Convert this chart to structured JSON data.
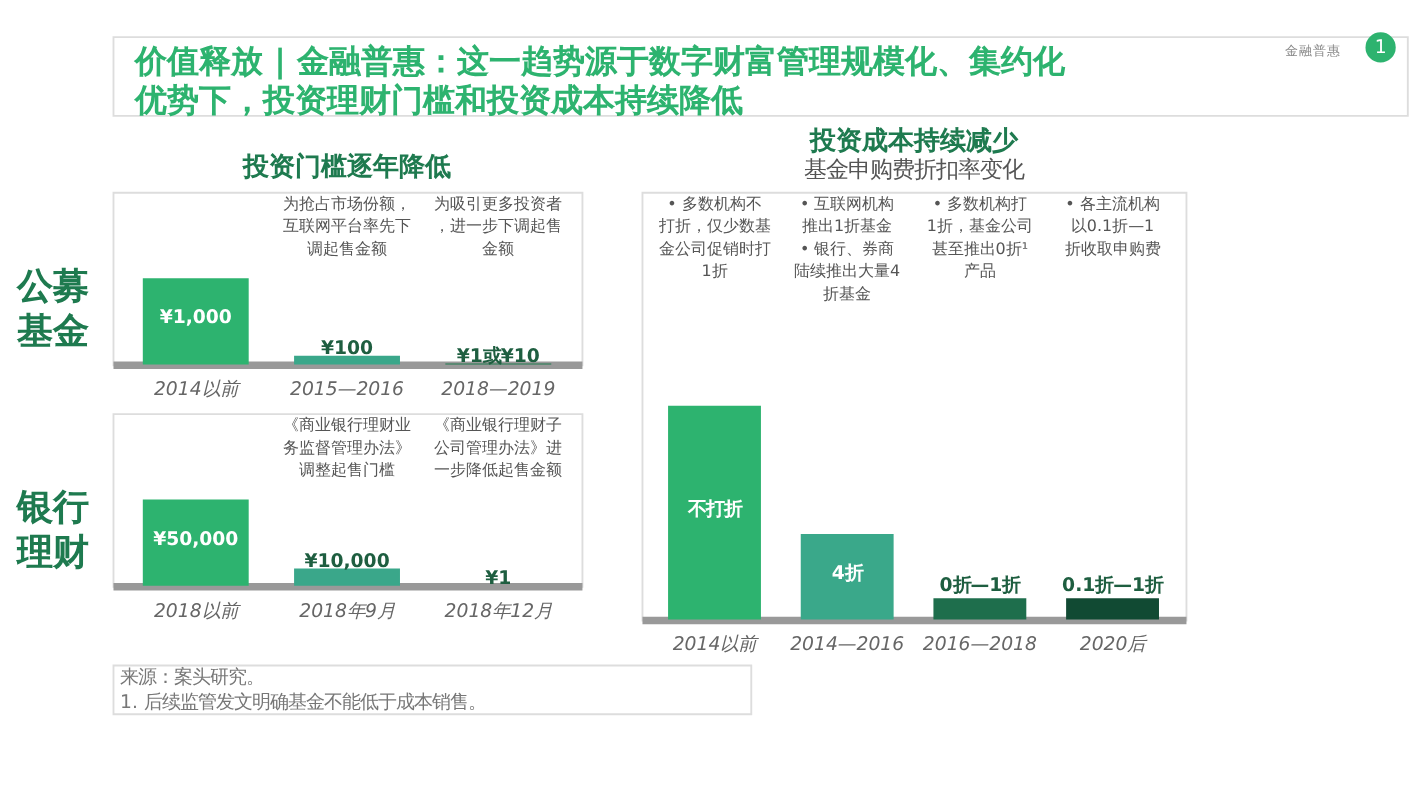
{
  "chart_data": [
    {
      "type": "other",
      "title": "价值释放 | 金融普惠：这一趋势源于数字财富管理规模化、集约化优势下，投资理财门槛和投资成本持续降低",
      "annotations": [
        "金融普惠",
        "1"
      ]
    },
    {
      "type": "bar",
      "title": "投资门槛逐年降低",
      "ylabel": "公募基金",
      "tick_labels": "x",
      "categories": [
        "2014以前",
        "2015—2016",
        "2018—2019"
      ],
      "values": [
        1000,
        100,
        10
      ],
      "colors": [
        "#2db36f",
        "#3aa78a",
        "#1e7a4f"
      ],
      "value_labels": [
        "¥1,000",
        "¥100",
        "¥1或¥10"
      ],
      "annotations": [
        "为抢占市场份额，互联网平台率先下调起售金额",
        "为吸引更多投资者，进一步下调起售金额"
      ]
    },
    {
      "type": "bar",
      "ylabel": "银行理财",
      "tick_labels": "x",
      "categories": [
        "2018以前",
        "2018年9月",
        "2018年12月"
      ],
      "values": [
        50000,
        10000,
        1
      ],
      "colors": [
        "#2db36f",
        "#3aa78a",
        "#1e7a4f"
      ],
      "value_labels": [
        "¥50,000",
        "¥10,000",
        "¥1"
      ],
      "annotations": [
        "《商业银行理财业务监督管理办法》调整起售门槛",
        "《商业银行理财子公司管理办法》进一步降低起售金额"
      ]
    },
    {
      "type": "bar",
      "title": "投资成本持续减少",
      "subtitle": "基金申购费折扣率变化",
      "tick_labels": "x",
      "categories": [
        "2014以前",
        "2014—2016",
        "2016—2018",
        "2020后"
      ],
      "values": [
        10,
        4,
        1,
        1
      ],
      "colors": [
        "#2db36f",
        "#3aa88a",
        "#1e6e4c",
        "#114a33"
      ],
      "value_labels": [
        "不打折",
        "4折",
        "0折—1折",
        "0.1折—1折"
      ],
      "annotations": [
        "• 多数机构不打折，仅少数基金公司促销时打1折",
        "• 互联网机构推出1折基金• 银行、券商陆续推出大量4折基金",
        "• 多数机构打1折，基金公司甚至推出0折¹产品",
        "• 各主流机构以0.1折—1折收取申购费"
      ]
    },
    {
      "type": "other",
      "annotations": [
        "来源：案头研究。",
        "1. 后续监管发文明确基金不能低于成本销售。"
      ]
    }
  ]
}
